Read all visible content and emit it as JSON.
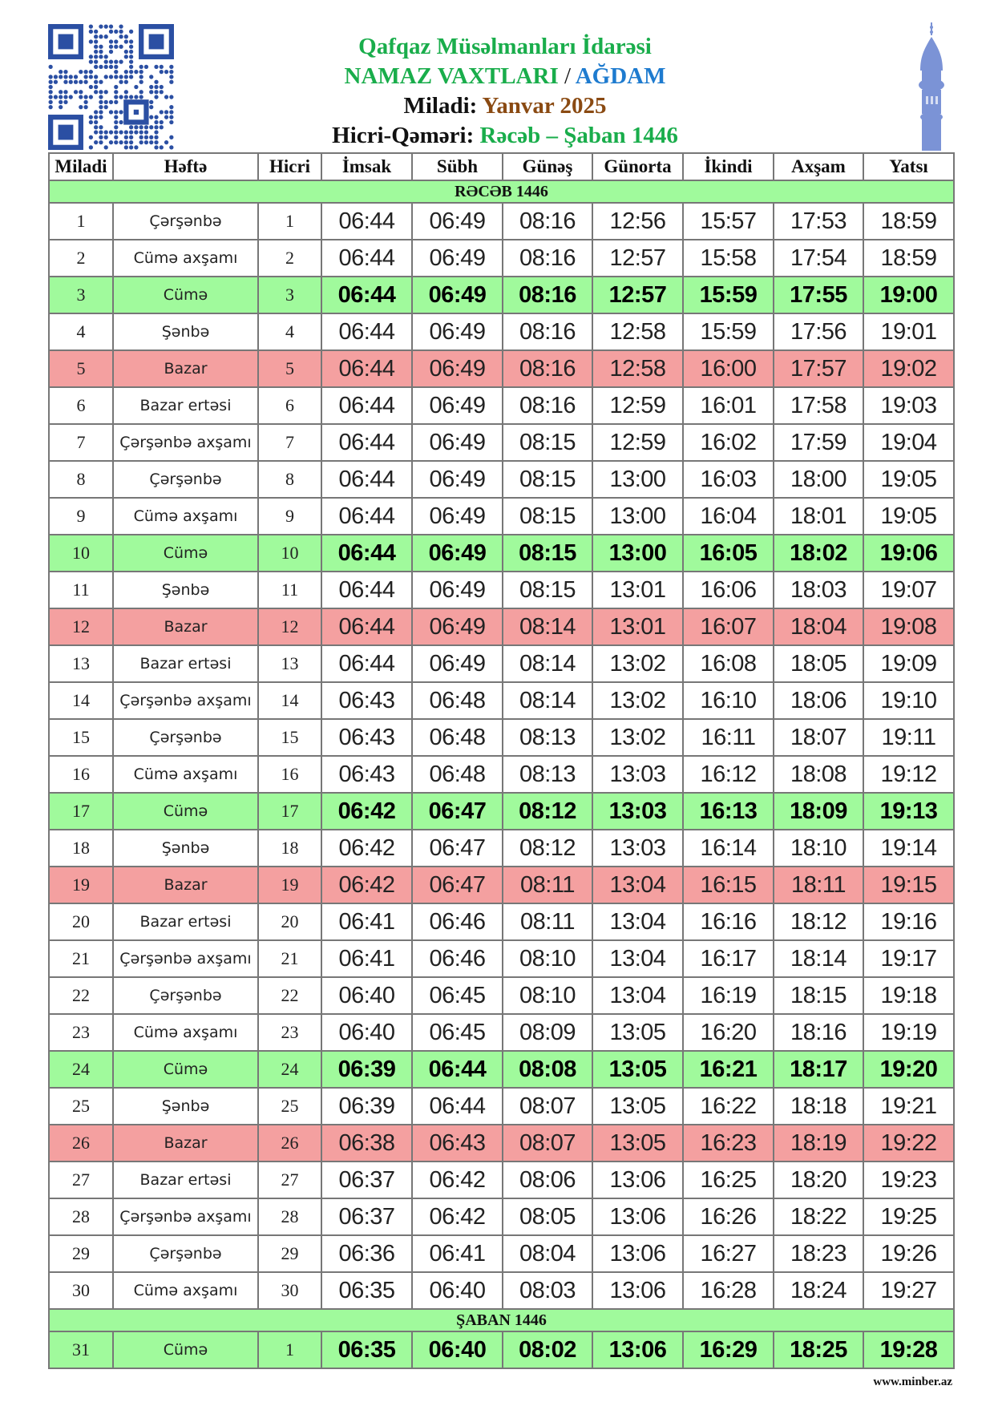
{
  "header": {
    "org": "Qafqaz Müsəlmanları İdarəsi",
    "title_prefix": "NAMAZ VAXTLARI",
    "separator": "/",
    "city": "AĞDAM",
    "miladi_label": "Miladi:",
    "miladi_value": "Yanvar 2025",
    "hicri_label": "Hicri-Qəməri:",
    "hicri_value": "Rəcəb – Şaban 1446"
  },
  "colors": {
    "friday_row": "#a0fa9c",
    "sunday_row": "#f4a0a0",
    "title_green": "#19ad4b",
    "city_blue": "#1e7bcf",
    "month_brown": "#8a4a12",
    "minaret": "#7b93d6",
    "qr": "#2b4fa3"
  },
  "columns": [
    "Miladi",
    "Həftə",
    "Hicri",
    "İmsak",
    "Sübh",
    "Günəş",
    "Günorta",
    "İkindi",
    "Axşam",
    "Yatsı"
  ],
  "sections": [
    {
      "label": "RƏCƏB 1446",
      "rows": [
        [
          "1",
          "Çərşənbə",
          "1",
          "06:44",
          "06:49",
          "08:16",
          "12:56",
          "15:57",
          "17:53",
          "18:59"
        ],
        [
          "2",
          "Cümə axşamı",
          "2",
          "06:44",
          "06:49",
          "08:16",
          "12:57",
          "15:58",
          "17:54",
          "18:59"
        ],
        [
          "3",
          "Cümə",
          "3",
          "06:44",
          "06:49",
          "08:16",
          "12:57",
          "15:59",
          "17:55",
          "19:00"
        ],
        [
          "4",
          "Şənbə",
          "4",
          "06:44",
          "06:49",
          "08:16",
          "12:58",
          "15:59",
          "17:56",
          "19:01"
        ],
        [
          "5",
          "Bazar",
          "5",
          "06:44",
          "06:49",
          "08:16",
          "12:58",
          "16:00",
          "17:57",
          "19:02"
        ],
        [
          "6",
          "Bazar ertəsi",
          "6",
          "06:44",
          "06:49",
          "08:16",
          "12:59",
          "16:01",
          "17:58",
          "19:03"
        ],
        [
          "7",
          "Çərşənbə axşamı",
          "7",
          "06:44",
          "06:49",
          "08:15",
          "12:59",
          "16:02",
          "17:59",
          "19:04"
        ],
        [
          "8",
          "Çərşənbə",
          "8",
          "06:44",
          "06:49",
          "08:15",
          "13:00",
          "16:03",
          "18:00",
          "19:05"
        ],
        [
          "9",
          "Cümə axşamı",
          "9",
          "06:44",
          "06:49",
          "08:15",
          "13:00",
          "16:04",
          "18:01",
          "19:05"
        ],
        [
          "10",
          "Cümə",
          "10",
          "06:44",
          "06:49",
          "08:15",
          "13:00",
          "16:05",
          "18:02",
          "19:06"
        ],
        [
          "11",
          "Şənbə",
          "11",
          "06:44",
          "06:49",
          "08:15",
          "13:01",
          "16:06",
          "18:03",
          "19:07"
        ],
        [
          "12",
          "Bazar",
          "12",
          "06:44",
          "06:49",
          "08:14",
          "13:01",
          "16:07",
          "18:04",
          "19:08"
        ],
        [
          "13",
          "Bazar ertəsi",
          "13",
          "06:44",
          "06:49",
          "08:14",
          "13:02",
          "16:08",
          "18:05",
          "19:09"
        ],
        [
          "14",
          "Çərşənbə axşamı",
          "14",
          "06:43",
          "06:48",
          "08:14",
          "13:02",
          "16:10",
          "18:06",
          "19:10"
        ],
        [
          "15",
          "Çərşənbə",
          "15",
          "06:43",
          "06:48",
          "08:13",
          "13:02",
          "16:11",
          "18:07",
          "19:11"
        ],
        [
          "16",
          "Cümə axşamı",
          "16",
          "06:43",
          "06:48",
          "08:13",
          "13:03",
          "16:12",
          "18:08",
          "19:12"
        ],
        [
          "17",
          "Cümə",
          "17",
          "06:42",
          "06:47",
          "08:12",
          "13:03",
          "16:13",
          "18:09",
          "19:13"
        ],
        [
          "18",
          "Şənbə",
          "18",
          "06:42",
          "06:47",
          "08:12",
          "13:03",
          "16:14",
          "18:10",
          "19:14"
        ],
        [
          "19",
          "Bazar",
          "19",
          "06:42",
          "06:47",
          "08:11",
          "13:04",
          "16:15",
          "18:11",
          "19:15"
        ],
        [
          "20",
          "Bazar ertəsi",
          "20",
          "06:41",
          "06:46",
          "08:11",
          "13:04",
          "16:16",
          "18:12",
          "19:16"
        ],
        [
          "21",
          "Çərşənbə axşamı",
          "21",
          "06:41",
          "06:46",
          "08:10",
          "13:04",
          "16:17",
          "18:14",
          "19:17"
        ],
        [
          "22",
          "Çərşənbə",
          "22",
          "06:40",
          "06:45",
          "08:10",
          "13:04",
          "16:19",
          "18:15",
          "19:18"
        ],
        [
          "23",
          "Cümə axşamı",
          "23",
          "06:40",
          "06:45",
          "08:09",
          "13:05",
          "16:20",
          "18:16",
          "19:19"
        ],
        [
          "24",
          "Cümə",
          "24",
          "06:39",
          "06:44",
          "08:08",
          "13:05",
          "16:21",
          "18:17",
          "19:20"
        ],
        [
          "25",
          "Şənbə",
          "25",
          "06:39",
          "06:44",
          "08:07",
          "13:05",
          "16:22",
          "18:18",
          "19:21"
        ],
        [
          "26",
          "Bazar",
          "26",
          "06:38",
          "06:43",
          "08:07",
          "13:05",
          "16:23",
          "18:19",
          "19:22"
        ],
        [
          "27",
          "Bazar ertəsi",
          "27",
          "06:37",
          "06:42",
          "08:06",
          "13:06",
          "16:25",
          "18:20",
          "19:23"
        ],
        [
          "28",
          "Çərşənbə axşamı",
          "28",
          "06:37",
          "06:42",
          "08:05",
          "13:06",
          "16:26",
          "18:22",
          "19:25"
        ],
        [
          "29",
          "Çərşənbə",
          "29",
          "06:36",
          "06:41",
          "08:04",
          "13:06",
          "16:27",
          "18:23",
          "19:26"
        ],
        [
          "30",
          "Cümə axşamı",
          "30",
          "06:35",
          "06:40",
          "08:03",
          "13:06",
          "16:28",
          "18:24",
          "19:27"
        ]
      ]
    },
    {
      "label": "ŞABAN 1446",
      "rows": [
        [
          "31",
          "Cümə",
          "1",
          "06:35",
          "06:40",
          "08:02",
          "13:06",
          "16:29",
          "18:25",
          "19:28"
        ]
      ]
    }
  ],
  "footer": "www.minber.az"
}
